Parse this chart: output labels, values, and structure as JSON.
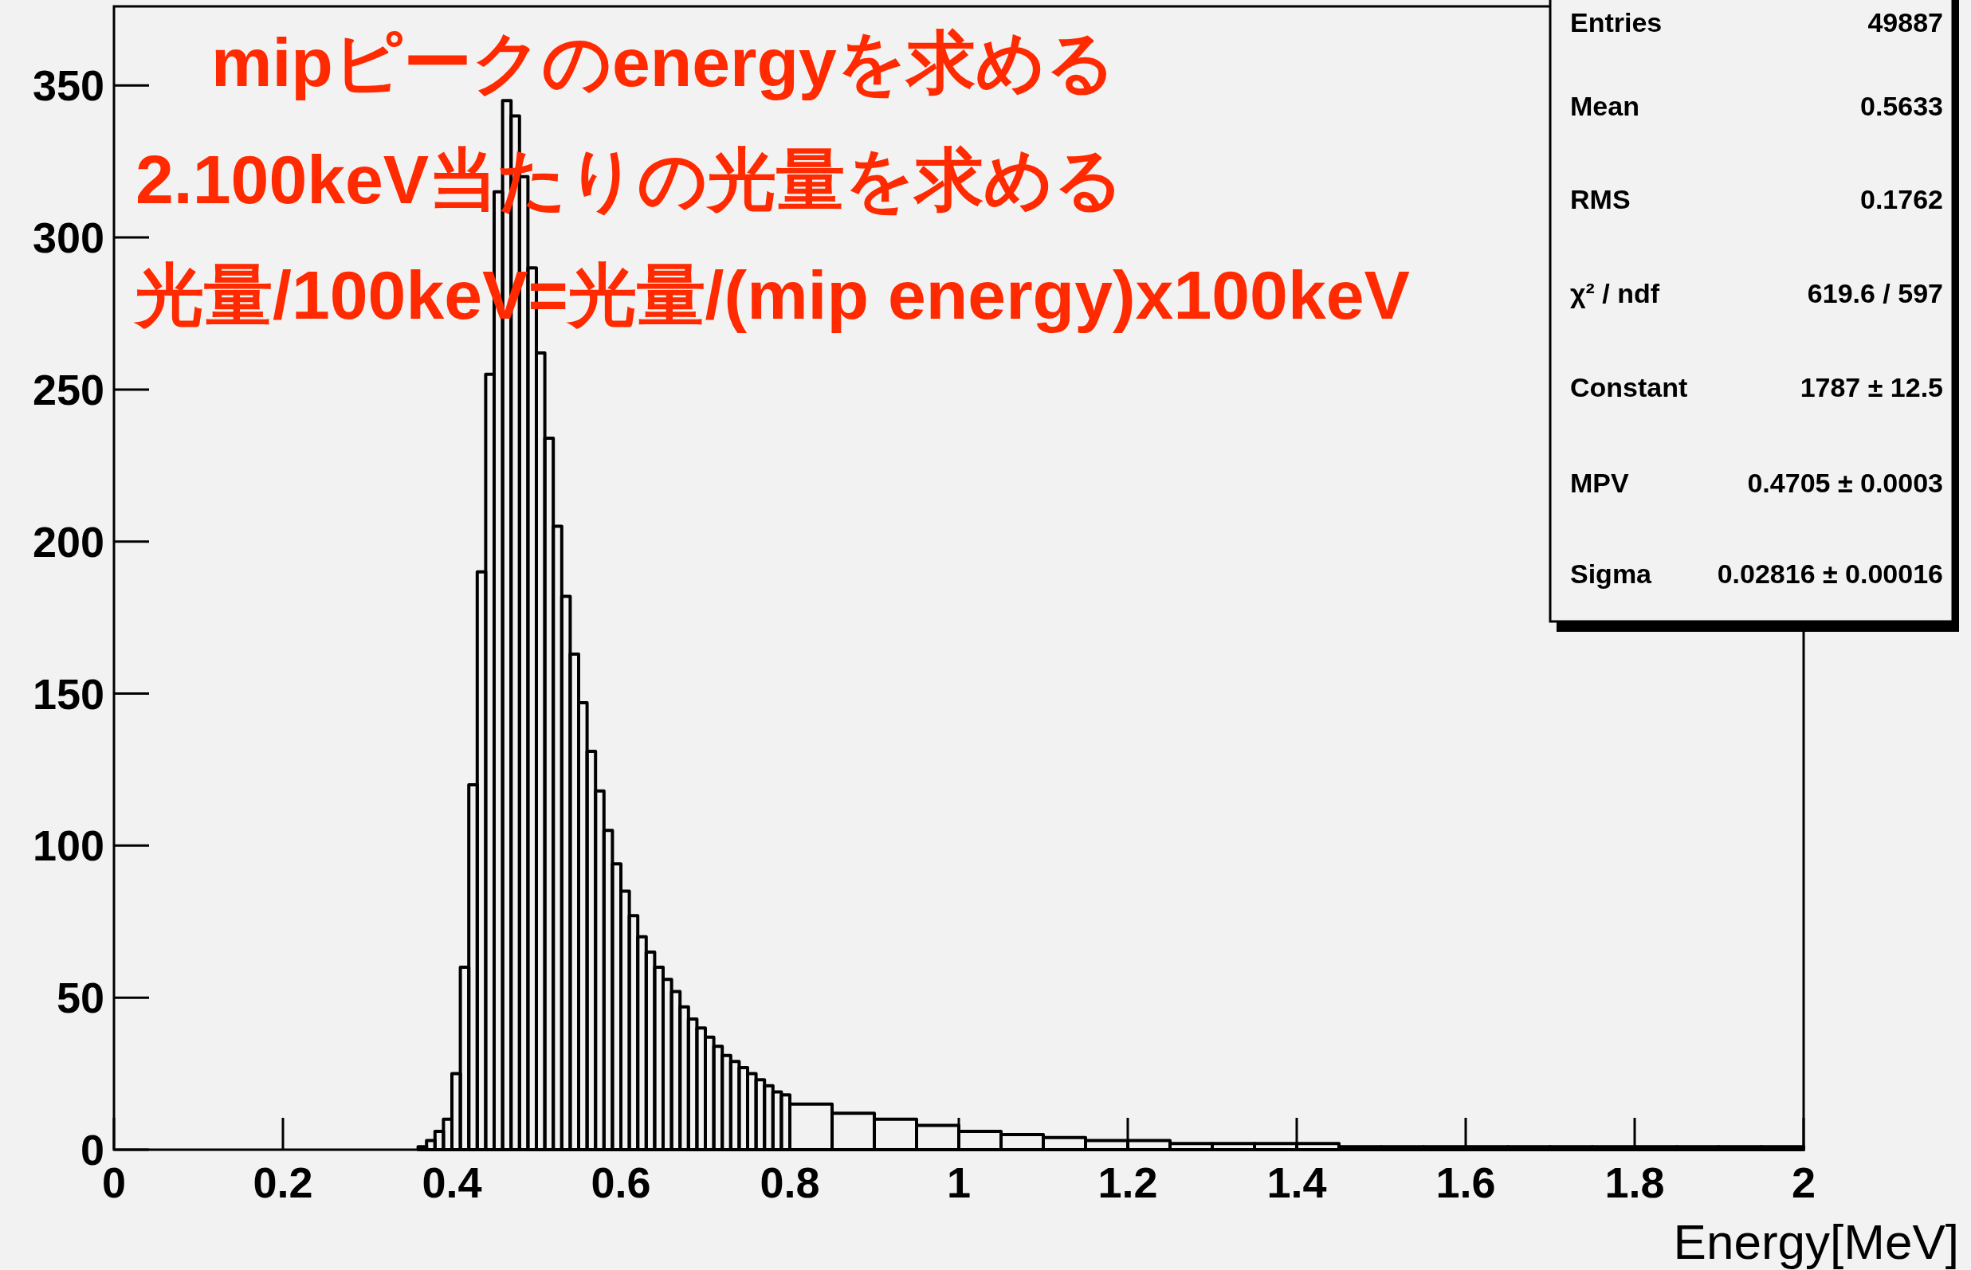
{
  "chart_data": {
    "type": "histogram",
    "xlabel": "Energy[MeV]",
    "color": "#000000",
    "annotations": [
      "mipピークのenergyを求める",
      "2.100keV当たりの光量を求める",
      "光量/100keV=光量/(mip energy)x100keV",
      "Entries",
      "49887",
      "Mean",
      "0.5633",
      "RMS",
      "0.1762",
      "χ² / ndf",
      "619.6 / 597",
      "Constant",
      "1787 ± 12.5",
      "MPV",
      "0.4705 ± 0.0003",
      "Sigma",
      "0.02816 ± 0.00016"
    ],
    "bins": [
      0.36,
      0.37,
      0.38,
      0.39,
      0.4,
      0.41,
      0.42,
      0.43,
      0.44,
      0.45,
      0.46,
      0.47,
      0.48,
      0.49,
      0.5,
      0.51,
      0.52,
      0.53,
      0.54,
      0.55,
      0.56,
      0.57,
      0.58,
      0.59,
      0.6,
      0.61,
      0.62,
      0.63,
      0.64,
      0.65,
      0.66,
      0.67,
      0.68,
      0.69,
      0.7,
      0.71,
      0.72,
      0.73,
      0.74,
      0.75,
      0.76,
      0.77,
      0.78,
      0.79,
      0.8,
      0.85,
      0.9,
      0.95,
      1.0,
      1.05,
      1.1,
      1.15,
      1.2,
      1.25,
      1.3,
      1.35,
      1.4,
      1.45,
      1.5,
      1.55,
      1.6,
      1.65,
      1.7,
      1.75,
      1.8,
      1.85,
      1.9,
      1.95,
      2.0
    ],
    "values": [
      1,
      3,
      6,
      10,
      25,
      60,
      120,
      190,
      255,
      315,
      345,
      340,
      320,
      290,
      262,
      234,
      205,
      182,
      163,
      147,
      131,
      118,
      105,
      94,
      85,
      77,
      70,
      65,
      60,
      56,
      52,
      47,
      43,
      40,
      37,
      34,
      31,
      29,
      27,
      25,
      23,
      21,
      19,
      18,
      15,
      12,
      10,
      8,
      6,
      5,
      4,
      3,
      3,
      2,
      2,
      2,
      2,
      1,
      1,
      1,
      1,
      1,
      1,
      1,
      1,
      1,
      1,
      1
    ],
    "xlim": [
      0,
      2
    ],
    "ylim": [
      0,
      376
    ],
    "xticks": [
      0,
      0.2,
      0.4,
      0.6,
      0.8,
      1,
      1.2,
      1.4,
      1.6,
      1.8,
      2
    ],
    "yticks": [
      0,
      50,
      100,
      150,
      200,
      250,
      300,
      350
    ]
  }
}
